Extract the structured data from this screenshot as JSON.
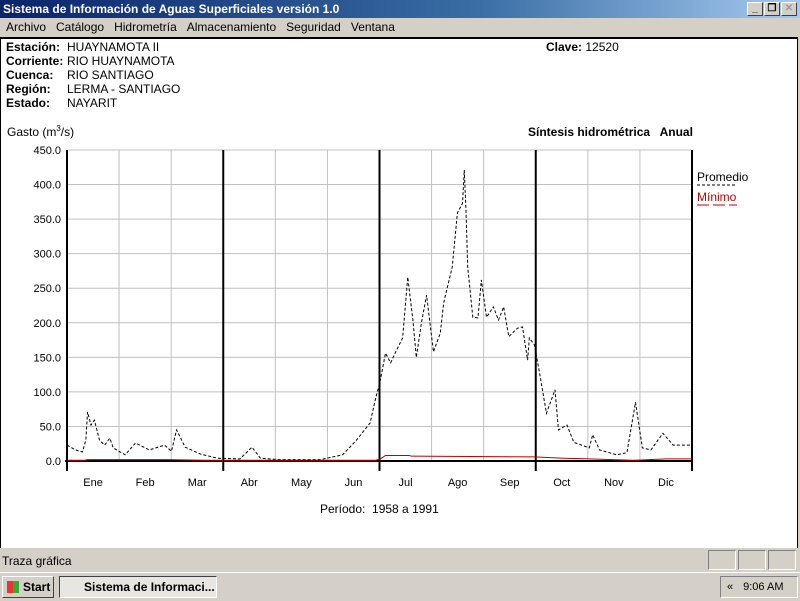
{
  "window": {
    "title": "Sistema de Información de Aguas Superficiales  versión 1.0"
  },
  "menu": [
    "Archivo",
    "Catálogo",
    "Hidrometría",
    "Almacenamiento",
    "Seguridad",
    "Ventana"
  ],
  "station": {
    "fields": [
      {
        "label": "Estación:",
        "value": "HUAYNAMOTA II"
      },
      {
        "label": "Corriente:",
        "value": "RIO HUAYNAMOTA"
      },
      {
        "label": "Cuenca:",
        "value": "RIO SANTIAGO"
      },
      {
        "label": "Región:",
        "value": "LERMA - SANTIAGO"
      },
      {
        "label": "Estado:",
        "value": "NAYARIT"
      }
    ],
    "clave_label": "Clave:",
    "clave_value": "12520"
  },
  "chart_data": {
    "type": "line",
    "title": "Síntesis hidrométrica   Anual",
    "ylabel_prefix": "Gasto (m",
    "ylabel_sup": "3",
    "ylabel_suffix": "/s)",
    "xlabel": "Período:  1958 a 1991",
    "ylim": [
      0,
      450
    ],
    "yticks": [
      "0.0",
      "50.0",
      "100.0",
      "150.0",
      "200.0",
      "250.0",
      "300.0",
      "350.0",
      "400.0",
      "450.0"
    ],
    "categories": [
      "Ene",
      "Feb",
      "Mar",
      "Abr",
      "May",
      "Jun",
      "Jul",
      "Ago",
      "Sep",
      "Oct",
      "Nov",
      "Dic"
    ],
    "grid": true,
    "legend_position": "right",
    "series": [
      {
        "name": "Promedio",
        "color": "#000000",
        "style": "dashed",
        "points": [
          [
            0,
            23
          ],
          [
            5,
            16
          ],
          [
            9,
            13
          ],
          [
            11,
            30
          ],
          [
            12,
            71
          ],
          [
            14,
            52
          ],
          [
            16,
            59
          ],
          [
            19,
            30
          ],
          [
            22,
            23
          ],
          [
            25,
            33
          ],
          [
            27,
            19
          ],
          [
            31,
            13
          ],
          [
            34,
            9
          ],
          [
            40,
            26
          ],
          [
            48,
            16
          ],
          [
            57,
            23
          ],
          [
            61,
            14
          ],
          [
            64,
            45
          ],
          [
            69,
            20
          ],
          [
            78,
            10
          ],
          [
            88,
            4
          ],
          [
            101,
            3
          ],
          [
            108,
            20
          ],
          [
            113,
            4
          ],
          [
            124,
            2
          ],
          [
            148,
            2
          ],
          [
            161,
            9
          ],
          [
            169,
            30
          ],
          [
            177,
            55
          ],
          [
            180,
            88
          ],
          [
            183,
            117
          ],
          [
            186,
            156
          ],
          [
            189,
            142
          ],
          [
            192,
            158
          ],
          [
            196,
            178
          ],
          [
            199,
            266
          ],
          [
            202,
            204
          ],
          [
            204,
            150
          ],
          [
            207,
            200
          ],
          [
            210,
            240
          ],
          [
            214,
            158
          ],
          [
            218,
            185
          ],
          [
            220,
            229
          ],
          [
            225,
            281
          ],
          [
            228,
            359
          ],
          [
            231,
            373
          ],
          [
            232,
            421
          ],
          [
            233,
            363
          ],
          [
            234,
            281
          ],
          [
            237,
            208
          ],
          [
            240,
            207
          ],
          [
            242,
            262
          ],
          [
            245,
            208
          ],
          [
            249,
            223
          ],
          [
            252,
            204
          ],
          [
            255,
            223
          ],
          [
            258,
            180
          ],
          [
            263,
            192
          ],
          [
            266,
            194
          ],
          [
            269,
            146
          ],
          [
            270,
            178
          ],
          [
            273,
            168
          ],
          [
            276,
            127
          ],
          [
            280,
            69
          ],
          [
            285,
            103
          ],
          [
            287,
            45
          ],
          [
            292,
            52
          ],
          [
            296,
            27
          ],
          [
            305,
            19
          ],
          [
            307,
            38
          ],
          [
            311,
            16
          ],
          [
            321,
            9
          ],
          [
            327,
            12
          ],
          [
            332,
            85
          ],
          [
            336,
            19
          ],
          [
            341,
            16
          ],
          [
            348,
            40
          ],
          [
            354,
            23
          ],
          [
            360,
            23
          ],
          [
            365,
            23
          ]
        ]
      },
      {
        "name": "Mínimo",
        "color": "#c00000",
        "style": "solid",
        "points": [
          [
            0,
            1
          ],
          [
            10,
            1
          ],
          [
            12,
            2
          ],
          [
            60,
            2
          ],
          [
            80,
            1
          ],
          [
            180,
            1
          ],
          [
            183,
            3
          ],
          [
            186,
            8
          ],
          [
            200,
            8
          ],
          [
            201,
            7
          ],
          [
            273,
            6
          ],
          [
            290,
            4
          ],
          [
            305,
            3
          ],
          [
            330,
            1
          ],
          [
            350,
            3
          ],
          [
            365,
            3
          ]
        ]
      }
    ]
  },
  "status": {
    "text": "Traza gráfica"
  },
  "taskbar": {
    "start": "Start",
    "task": "Sistema de Informaci...",
    "tray_arrows": "«",
    "clock": "9:06 AM"
  }
}
